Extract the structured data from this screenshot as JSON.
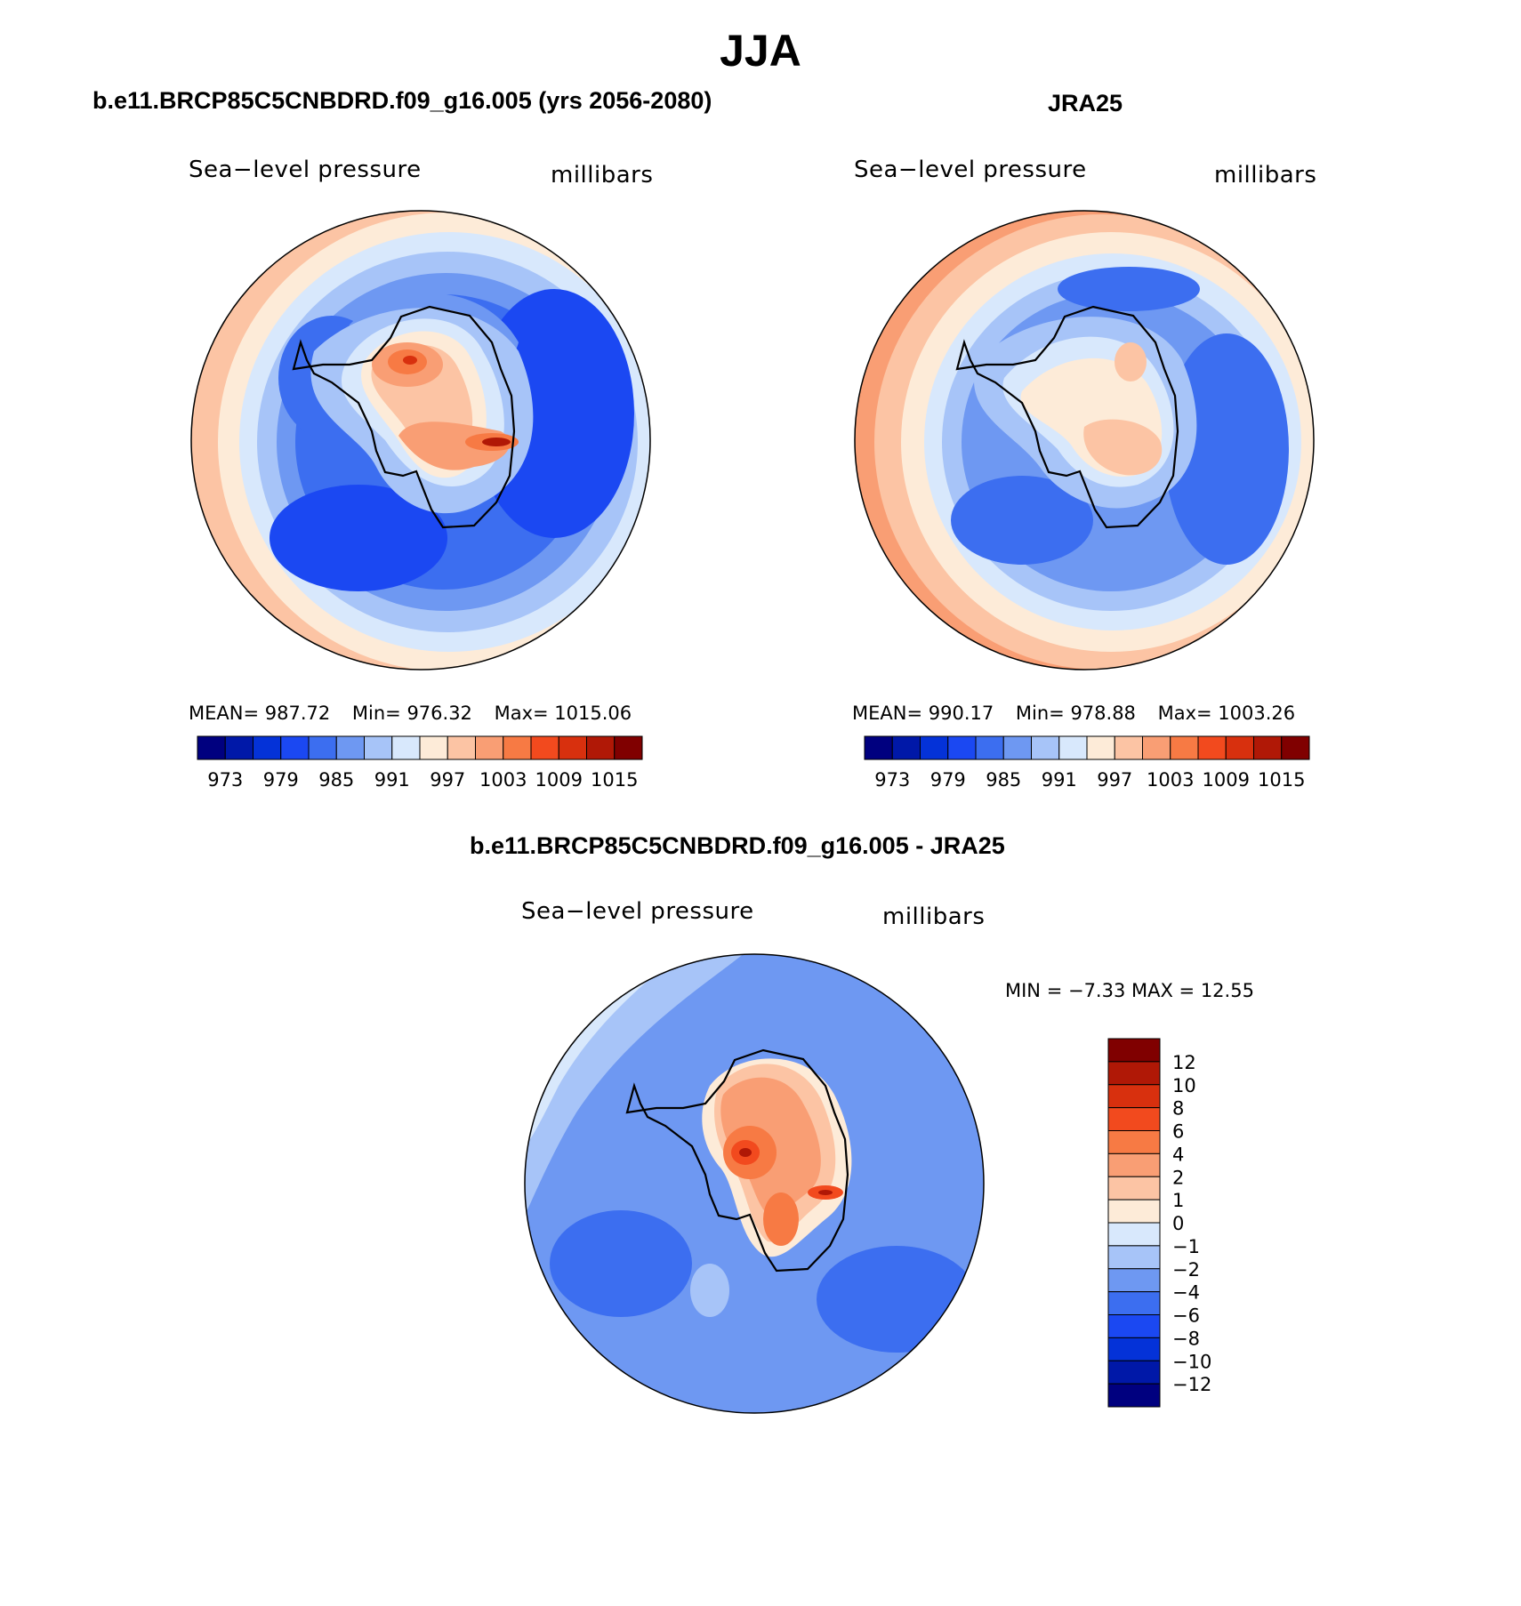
{
  "figure": {
    "title": "JJA",
    "panel_left_title": "b.e11.BRCP85C5CNBDRD.f09_g16.005 (yrs 2056-2080)",
    "panel_right_title": "JRA25",
    "panel_bottom_title": "b.e11.BRCP85C5CNBDRD.f09_g16.005 - JRA25"
  },
  "panels": {
    "left": {
      "variable": "Sea−level pressure",
      "units": "millibars",
      "mean": "MEAN=  987.72",
      "min": "Min=  976.32",
      "max": "Max=  1015.06"
    },
    "right": {
      "variable": "Sea−level pressure",
      "units": "millibars",
      "mean": "MEAN=  990.17",
      "min": "Min=  978.88",
      "max": "Max=  1003.26"
    },
    "bottom": {
      "variable": "Sea−level pressure",
      "units": "millibars",
      "minmax": "MIN =    −7.33  MAX =    12.55"
    }
  },
  "chart_data": [
    {
      "type": "heatmap",
      "title": "b.e11.BRCP85C5CNBDRD.f09_g16.005 (yrs 2056-2080)",
      "variable": "Sea-level pressure",
      "units": "millibars",
      "projection": "south polar stereographic",
      "mean": 987.72,
      "min": 976.32,
      "max": 1015.06,
      "colorbar_ticks": [
        "973",
        "979",
        "985",
        "991",
        "997",
        "1003",
        "1009",
        "1015"
      ],
      "colors": [
        "#00007f",
        "#0018a8",
        "#0432d8",
        "#1b48f2",
        "#3c6ef0",
        "#6e98f2",
        "#a7c4f8",
        "#d8e8fc",
        "#fdebd8",
        "#fcc4a4",
        "#f99e74",
        "#f77a44",
        "#f24a1e",
        "#d8300e",
        "#b01806",
        "#800000"
      ]
    },
    {
      "type": "heatmap",
      "title": "JRA25",
      "variable": "Sea-level pressure",
      "units": "millibars",
      "projection": "south polar stereographic",
      "mean": 990.17,
      "min": 978.88,
      "max": 1003.26,
      "colorbar_ticks": [
        "973",
        "979",
        "985",
        "991",
        "997",
        "1003",
        "1009",
        "1015"
      ],
      "colors": [
        "#00007f",
        "#0018a8",
        "#0432d8",
        "#1b48f2",
        "#3c6ef0",
        "#6e98f2",
        "#a7c4f8",
        "#d8e8fc",
        "#fdebd8",
        "#fcc4a4",
        "#f99e74",
        "#f77a44",
        "#f24a1e",
        "#d8300e",
        "#b01806",
        "#800000"
      ]
    },
    {
      "type": "heatmap",
      "title": "b.e11.BRCP85C5CNBDRD.f09_g16.005 - JRA25",
      "variable": "Sea-level pressure",
      "units": "millibars",
      "projection": "south polar stereographic",
      "min": -7.33,
      "max": 12.55,
      "colorbar_ticks": [
        "12",
        "10",
        "8",
        "6",
        "4",
        "2",
        "1",
        "0",
        "−1",
        "−2",
        "−4",
        "−6",
        "−8",
        "−10",
        "−12"
      ],
      "colors": [
        "#800000",
        "#b01806",
        "#d8300e",
        "#f24a1e",
        "#f77a44",
        "#f99e74",
        "#fcc4a4",
        "#fdebd8",
        "#d8e8fc",
        "#a7c4f8",
        "#6e98f2",
        "#3c6ef0",
        "#1b48f2",
        "#0432d8",
        "#0018a8",
        "#00007f"
      ]
    }
  ]
}
